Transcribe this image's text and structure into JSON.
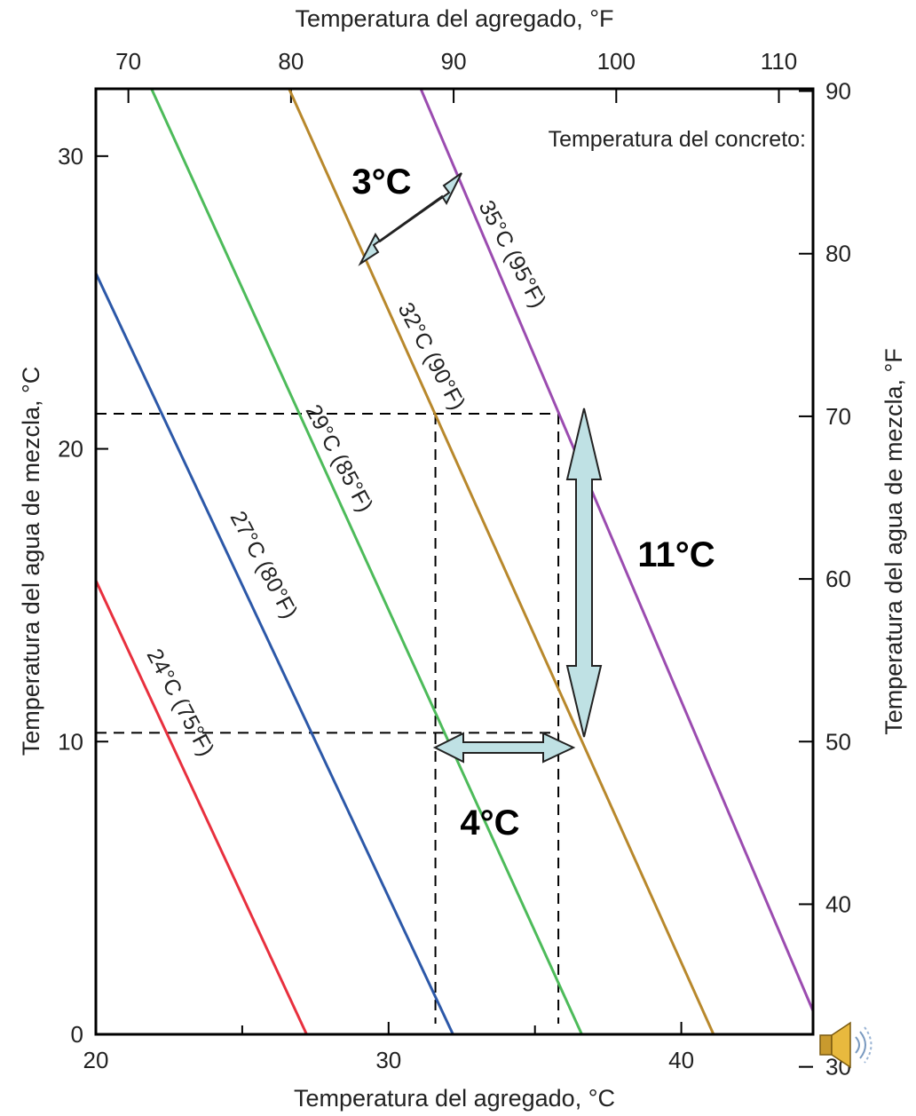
{
  "chart_data": {
    "type": "line",
    "top_axis_title": "Temperatura del agregado, °F",
    "bottom_axis_title": "Temperatura del agregado, °C",
    "left_axis_title": "Temperatura del agua de mezcla, °C",
    "right_axis_title": "Temperatura del agua de mezcla, °F",
    "legend_title": "Temperatura del concreto:",
    "xlim_c": [
      20,
      44.5
    ],
    "ylim_c": [
      0,
      32.3
    ],
    "x_ticks_c": [
      20,
      30,
      40
    ],
    "x_ticks_f": [
      70,
      80,
      90,
      100,
      110
    ],
    "y_ticks_c": [
      0,
      10,
      20,
      30
    ],
    "y_ticks_f": [
      30,
      40,
      50,
      60,
      70,
      80,
      90
    ],
    "series": [
      {
        "name": "24°C (75°F)",
        "color": "#e8303e",
        "points": [
          [
            20,
            15.5
          ],
          [
            27.2,
            0
          ]
        ]
      },
      {
        "name": "27°C (80°F)",
        "color": "#2c58a8",
        "points": [
          [
            20,
            26
          ],
          [
            32.2,
            0
          ]
        ]
      },
      {
        "name": "29°C (85°F)",
        "color": "#4dbb5a",
        "points": [
          [
            21.9,
            32.3
          ],
          [
            36.6,
            0
          ]
        ]
      },
      {
        "name": "32°C (90°F)",
        "color": "#b8882c",
        "points": [
          [
            26.6,
            32.3
          ],
          [
            41.1,
            0
          ]
        ]
      },
      {
        "name": "35°C (95°F)",
        "color": "#9b4cb0",
        "points": [
          [
            31.1,
            32.3
          ],
          [
            44.5,
            0.8
          ]
        ]
      }
    ],
    "annotations": {
      "delta_water": "11°C",
      "delta_aggregate": "4°C",
      "delta_concrete": "3°C",
      "guide_y_high": 21.2,
      "guide_y_low": 10.3,
      "guide_x_left": 31.6,
      "guide_x_right": 35.8
    }
  }
}
